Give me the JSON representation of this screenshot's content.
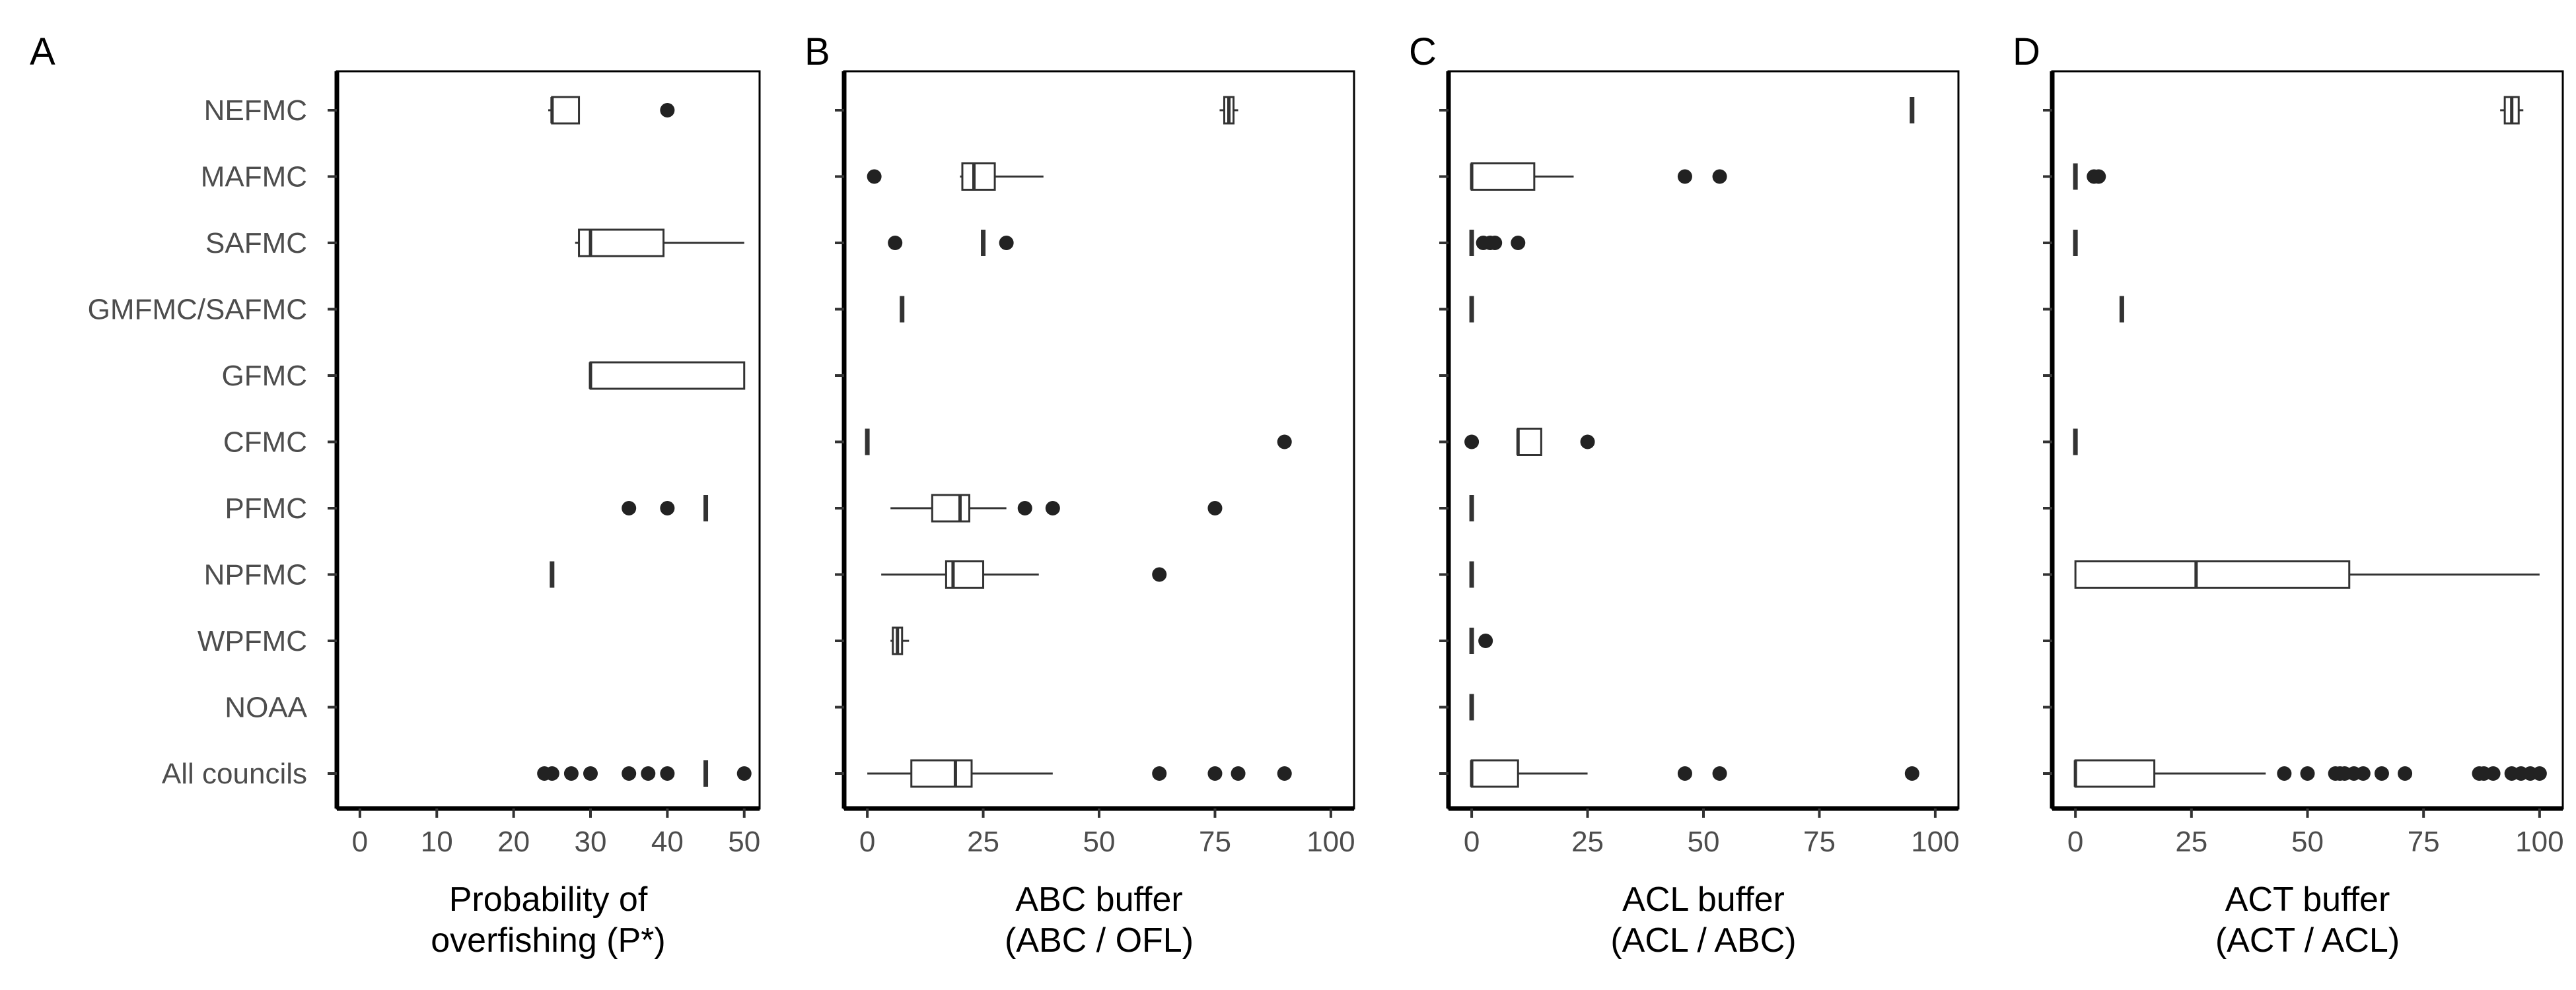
{
  "chart_data": {
    "type": "boxplot",
    "categories": [
      "NEFMC",
      "MAFMC",
      "SAFMC",
      "GMFMC/SAFMC",
      "GFMC",
      "CFMC",
      "PFMC",
      "NPFMC",
      "WPFMC",
      "NOAA",
      "All councils"
    ],
    "panels": [
      {
        "letter": "A",
        "xlabel": [
          "Probability of",
          "overfishing (P*)"
        ],
        "xlim": [
          -3,
          52
        ],
        "ticks": [
          0,
          10,
          20,
          30,
          40,
          50
        ],
        "boxes": [
          {
            "cat": "NEFMC",
            "min": 24.5,
            "q1": 25,
            "med": 25,
            "q3": 28.5,
            "max": 28.5,
            "outliers": [
              40
            ]
          },
          {
            "cat": "SAFMC",
            "min": 28,
            "q1": 28.5,
            "med": 30,
            "q3": 39.5,
            "max": 50,
            "outliers": []
          },
          {
            "cat": "GFMC",
            "min": 30,
            "q1": 30,
            "med": 30,
            "q3": 50,
            "max": 50,
            "outliers": []
          },
          {
            "cat": "PFMC",
            "min": 45,
            "q1": 45,
            "med": 45,
            "q3": 45,
            "max": 45,
            "outliers": [
              35,
              40
            ]
          },
          {
            "cat": "NPFMC",
            "min": 25,
            "q1": 25,
            "med": 25,
            "q3": 25,
            "max": 25,
            "outliers": []
          },
          {
            "cat": "All councils",
            "min": 45,
            "q1": 45,
            "med": 45,
            "q3": 45,
            "max": 45,
            "outliers": [
              24,
              25,
              27.5,
              30,
              35,
              37.5,
              40,
              50
            ]
          }
        ]
      },
      {
        "letter": "B",
        "xlabel": [
          "ABC buffer",
          "(ABC / OFL)"
        ],
        "xlim": [
          -5,
          105
        ],
        "ticks": [
          0,
          25,
          50,
          75,
          100
        ],
        "boxes": [
          {
            "cat": "NEFMC",
            "min": 76,
            "q1": 77,
            "med": 78,
            "q3": 79,
            "max": 80,
            "outliers": []
          },
          {
            "cat": "MAFMC",
            "min": 20,
            "q1": 20.5,
            "med": 23,
            "q3": 27.5,
            "max": 38,
            "outliers": [
              1.5
            ]
          },
          {
            "cat": "SAFMC",
            "min": 25,
            "q1": 25,
            "med": 25,
            "q3": 25,
            "max": 25,
            "outliers": [
              6,
              30
            ]
          },
          {
            "cat": "GMFMC/SAFMC",
            "min": 7.5,
            "q1": 7.5,
            "med": 7.5,
            "q3": 7.5,
            "max": 7.5,
            "outliers": []
          },
          {
            "cat": "CFMC",
            "min": 0,
            "q1": 0,
            "med": 0,
            "q3": 0,
            "max": 0,
            "outliers": [
              90
            ]
          },
          {
            "cat": "PFMC",
            "min": 5,
            "q1": 14,
            "med": 20,
            "q3": 22,
            "max": 30,
            "outliers": [
              34,
              40,
              75
            ]
          },
          {
            "cat": "NPFMC",
            "min": 3,
            "q1": 17,
            "med": 18.5,
            "q3": 25,
            "max": 37,
            "outliers": [
              63
            ]
          },
          {
            "cat": "WPFMC",
            "min": 5,
            "q1": 5.5,
            "med": 6.5,
            "q3": 7.5,
            "max": 9,
            "outliers": []
          },
          {
            "cat": "All councils",
            "min": 0,
            "q1": 9.5,
            "med": 19,
            "q3": 22.5,
            "max": 40,
            "outliers": [
              63,
              75,
              80,
              90
            ]
          }
        ]
      },
      {
        "letter": "C",
        "xlabel": [
          "ACL buffer",
          "(ACL / ABC)"
        ],
        "xlim": [
          -5,
          105
        ],
        "ticks": [
          0,
          25,
          50,
          75,
          100
        ],
        "boxes": [
          {
            "cat": "NEFMC",
            "min": 95,
            "q1": 95,
            "med": 95,
            "q3": 95,
            "max": 95,
            "outliers": []
          },
          {
            "cat": "MAFMC",
            "min": 0,
            "q1": 0,
            "med": 0,
            "q3": 13.5,
            "max": 22,
            "outliers": [
              46,
              53.5
            ]
          },
          {
            "cat": "SAFMC",
            "min": 0,
            "q1": 0,
            "med": 0,
            "q3": 0,
            "max": 0,
            "outliers": [
              2.5,
              4,
              5,
              10
            ]
          },
          {
            "cat": "GMFMC/SAFMC",
            "min": 0,
            "q1": 0,
            "med": 0,
            "q3": 0,
            "max": 0,
            "outliers": []
          },
          {
            "cat": "CFMC",
            "min": 10,
            "q1": 10,
            "med": 10,
            "q3": 15,
            "max": 15,
            "outliers": [
              0,
              25
            ]
          },
          {
            "cat": "PFMC",
            "min": 0,
            "q1": 0,
            "med": 0,
            "q3": 0,
            "max": 0,
            "outliers": []
          },
          {
            "cat": "NPFMC",
            "min": 0,
            "q1": 0,
            "med": 0,
            "q3": 0,
            "max": 0,
            "outliers": []
          },
          {
            "cat": "WPFMC",
            "min": 0,
            "q1": 0,
            "med": 0,
            "q3": 0,
            "max": 0,
            "outliers": [
              3
            ]
          },
          {
            "cat": "NOAA",
            "min": 0,
            "q1": 0,
            "med": 0,
            "q3": 0,
            "max": 0,
            "outliers": []
          },
          {
            "cat": "All councils",
            "min": 0,
            "q1": 0,
            "med": 0,
            "q3": 10,
            "max": 25,
            "outliers": [
              46,
              53.5,
              95
            ]
          }
        ]
      },
      {
        "letter": "D",
        "xlabel": [
          "ACT buffer",
          "(ACT / ACL)"
        ],
        "xlim": [
          -5,
          105
        ],
        "ticks": [
          0,
          25,
          50,
          75,
          100
        ],
        "boxes": [
          {
            "cat": "NEFMC",
            "min": 91.5,
            "q1": 92.5,
            "med": 94,
            "q3": 95.5,
            "max": 96.5,
            "outliers": []
          },
          {
            "cat": "MAFMC",
            "min": 0,
            "q1": 0,
            "med": 0,
            "q3": 0,
            "max": 0,
            "outliers": [
              4,
              5
            ]
          },
          {
            "cat": "SAFMC",
            "min": 0,
            "q1": 0,
            "med": 0,
            "q3": 0,
            "max": 0,
            "outliers": []
          },
          {
            "cat": "GMFMC/SAFMC",
            "min": 10,
            "q1": 10,
            "med": 10,
            "q3": 10,
            "max": 10,
            "outliers": []
          },
          {
            "cat": "CFMC",
            "min": 0,
            "q1": 0,
            "med": 0,
            "q3": 0,
            "max": 0,
            "outliers": []
          },
          {
            "cat": "NPFMC",
            "min": 0,
            "q1": 0,
            "med": 26,
            "q3": 59,
            "max": 100,
            "outliers": []
          },
          {
            "cat": "All councils",
            "min": 0,
            "q1": 0,
            "med": 0,
            "q3": 17,
            "max": 41,
            "outliers": [
              45,
              50,
              56,
              57,
              58,
              60,
              62,
              66,
              71,
              87,
              88,
              90,
              94,
              96,
              98,
              100
            ]
          }
        ]
      }
    ]
  }
}
